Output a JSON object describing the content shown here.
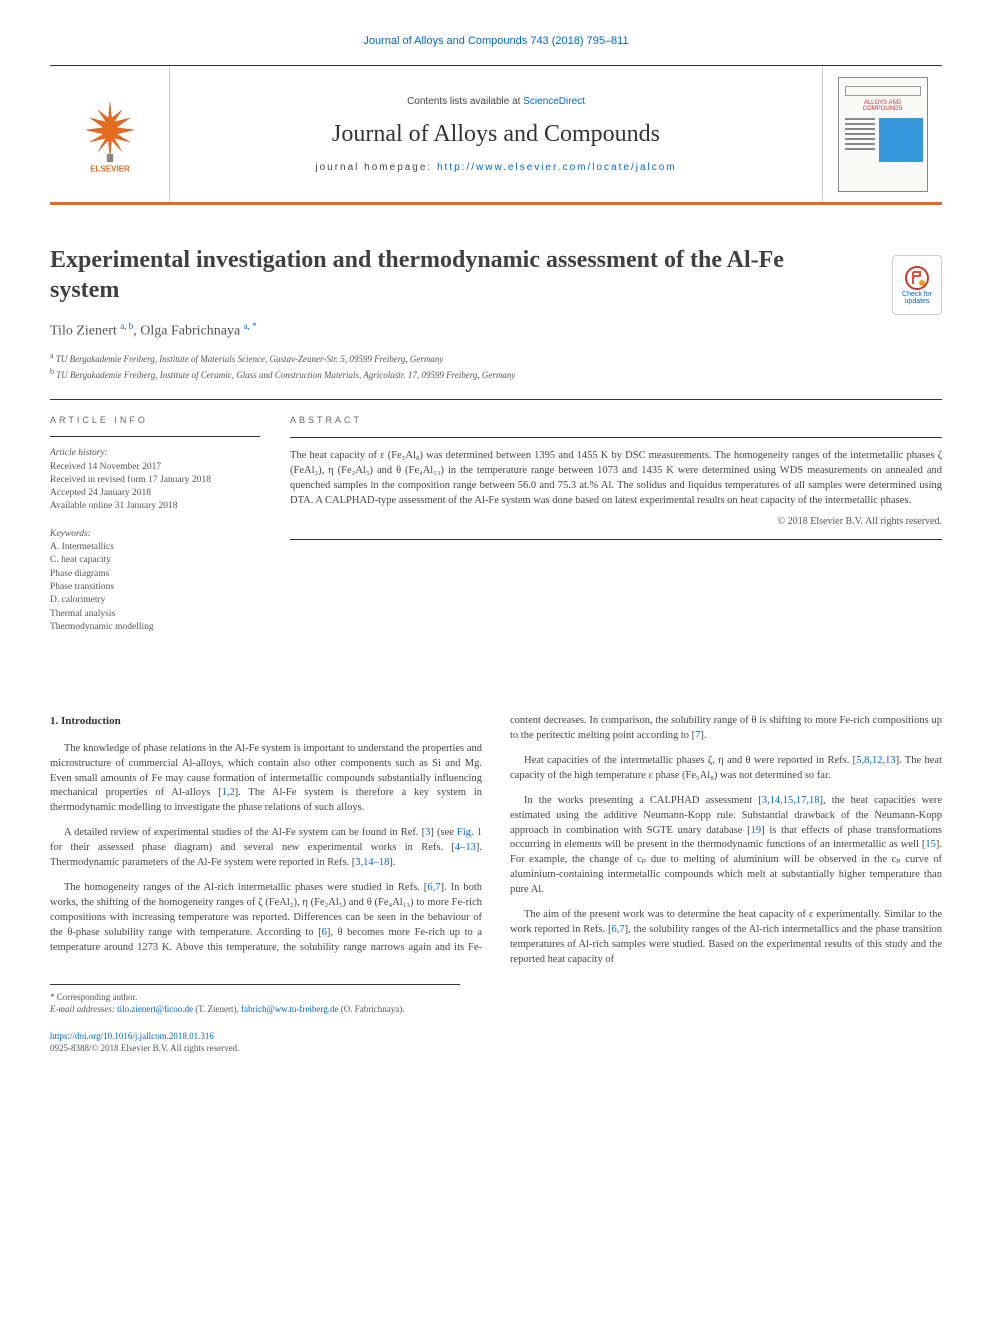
{
  "citation": "Journal of Alloys and Compounds 743 (2018) 795–811",
  "header": {
    "contents_prefix": "Contents lists available at ",
    "contents_link": "ScienceDirect",
    "journal_title": "Journal of Alloys and Compounds",
    "homepage_label": "journal homepage: ",
    "homepage_url": "http://www.elsevier.com/locate/jalcom",
    "elsevier_label": "ELSEVIER",
    "cover_journal": "ALLOYS AND COMPOUNDS"
  },
  "updates_badge": "Check for updates",
  "article": {
    "title": "Experimental investigation and thermodynamic assessment of the Al-Fe system",
    "authors_html": "Tilo Zienert <sup>a, b</sup>, Olga Fabrichnaya <sup>a, *</sup>",
    "affiliations": [
      {
        "mark": "a",
        "text": "TU Bergakademie Freiberg, Institute of Materials Science, Gustav-Zeuner-Str. 5, 09599 Freiberg, Germany"
      },
      {
        "mark": "b",
        "text": "TU Bergakademie Freiberg, Institute of Ceramic, Glass and Construction Materials, Agricolastr. 17, 09599 Freiberg, Germany"
      }
    ]
  },
  "info": {
    "heading": "ARTICLE INFO",
    "history_label": "Article history:",
    "history": [
      "Received 14 November 2017",
      "Received in revised form 17 January 2018",
      "Accepted 24 January 2018",
      "Available online 31 January 2018"
    ],
    "keywords_label": "Keywords:",
    "keywords": [
      "A. Intermetallics",
      "C. heat capacity",
      "Phase diagrams",
      "Phase transitions",
      "D. calorimetry",
      "Thermal analysis",
      "Thermodynamic modelling"
    ]
  },
  "abstract": {
    "heading": "ABSTRACT",
    "text": "The heat capacity of ε (Fe₅Al₈) was determined between 1395 and 1455 K by DSC measurements. The homogeneity ranges of the intermetallic phases ζ (FeAl₂), η (Fe₂Al₅) and θ (Fe₄Al₁₃) in the temperature range between 1073 and 1435 K were determined using WDS measurements on annealed and quenched samples in the composition range between 56.0 and 75.3 at.% Al. The solidus and liquidus temperatures of all samples were determined using DTA. A CALPHAD-type assessment of the Al-Fe system was done based on latest experimental results on heat capacity of the intermetallic phases.",
    "copyright": "© 2018 Elsevier B.V. All rights reserved."
  },
  "section1": {
    "heading": "1.  Introduction",
    "p1_a": "The knowledge of phase relations in the Al-Fe system is important to understand the properties and microstructure of commercial Al-alloys, which contain also other components such as Si and Mg. Even small amounts of Fe may cause formation of intermetallic compounds substantially influencing mechanical properties of Al-alloys [",
    "p1_ref1": "1,2",
    "p1_b": "]. The Al-Fe system is therefore a key system in thermodynamic modelling to investigate the phase relations of such alloys.",
    "p2_a": "A detailed review of experimental studies of the Al-Fe system can be found in Ref. [",
    "p2_ref1": "3",
    "p2_b": "] (see ",
    "p2_fig": "Fig. 1",
    "p2_c": " for their assessed phase diagram) and several new experimental works in Refs. [",
    "p2_ref2": "4–13",
    "p2_d": "]. Thermodynamic parameters of the Al-Fe system were reported in Refs. [",
    "p2_ref3": "3,14–18",
    "p2_e": "].",
    "p3_a": "The homogeneity ranges of the Al-rich intermetallic phases were studied in Refs. [",
    "p3_ref1": "6,7",
    "p3_b": "]. In both works, the shifting of the homogeneity ranges of ζ (FeAl₂), η (Fe₂Al₅) and θ (Fe₄Al₁₃) to more Fe-rich compositions with increasing temperature was reported. ",
    "p3_c": "Differences can be seen in the behaviour of the θ-phase solubility range with temperature. According to [",
    "p3_ref2": "6",
    "p3_d": "], θ becomes more Fe-rich up to a temperature around 1273 K. Above this temperature, the solubility range narrows again and its Fe-content decreases. In comparison, the solubility range of θ is shifting to more Fe-rich compositions up to the peritectic melting point according to [",
    "p3_ref3": "7",
    "p3_e": "].",
    "p4_a": "Heat capacities of the intermetallic phases ζ, η and θ were reported in Refs. [",
    "p4_ref1": "5,8,12,13",
    "p4_b": "]. The heat capacity of the high temperature ε phase (Fe₅Al₈) was not determined so far.",
    "p5_a": "In the works presenting a CALPHAD assessment [",
    "p5_ref1": "3,14,15,17,18",
    "p5_b": "], the heat capacities were estimated using the additive Neumann-Kopp rule. Substantial drawback of the Neumann-Kopp approach in combination with SGTE unary database [",
    "p5_ref2": "19",
    "p5_c": "] is that effects of phase transformations occurring in elements will be present in the thermodynamic functions of an intermetallic as well [",
    "p5_ref3": "15",
    "p5_d": "]. For example, the change of cₚ due to melting of aluminium will be observed in the cₚ curve of aluminium-containing intermetallic compounds which melt at substantially higher temperature than pure Al.",
    "p6_a": "The aim of the present work was to determine the heat capacity of ε experimentally. Similar to the work reported in Refs. [",
    "p6_ref1": "6,7",
    "p6_b": "], the solubility ranges of the Al-rich intermetallics and the phase transition temperatures of Al-rich samples were studied. Based on the experimental results of this study and the reported heat capacity of"
  },
  "footnotes": {
    "corr": "* Corresponding author.",
    "email_label": "E-mail addresses: ",
    "email1": "tilo.zienert@licoo.de",
    "email1_who": " (T. Zienert), ",
    "email2": "fabrich@ww.tu-freiberg.de",
    "email2_who": " (O. Fabrichnaya)."
  },
  "doi": {
    "url": "https://doi.org/10.1016/j.jallcom.2018.01.316",
    "issn_line": "0925-8388/© 2018 Elsevier B.V. All rights reserved."
  },
  "colors": {
    "accent_orange": "#e56b1f",
    "link_blue": "#0066cc",
    "text": "#454545",
    "rule": "#333333"
  }
}
